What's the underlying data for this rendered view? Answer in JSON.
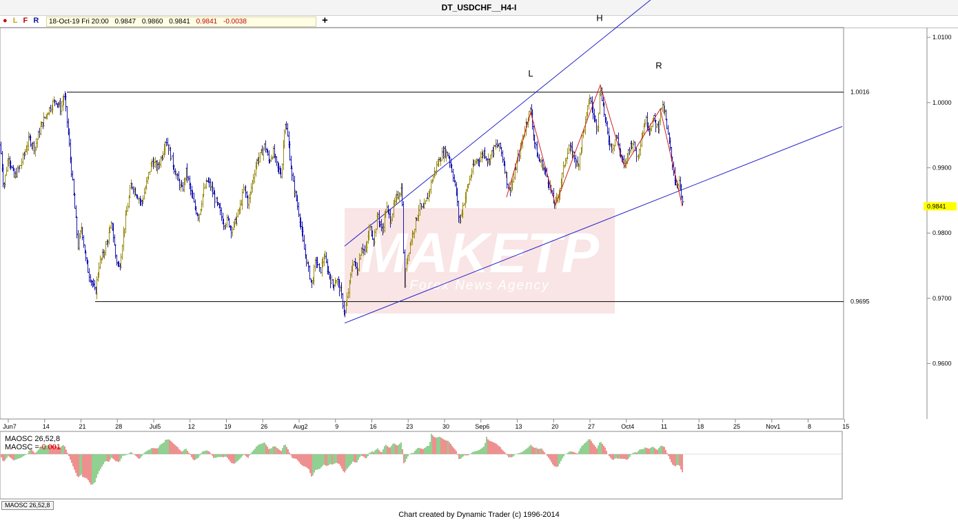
{
  "window": {
    "title": "DT_USDCHF__H4-I"
  },
  "toolbar": {
    "letters": [
      "L",
      "F",
      "R"
    ],
    "ohlc": {
      "date": "18-Oct-19 Fri 20:00",
      "open": "0.9847",
      "high": "0.9860",
      "low": "0.9841",
      "close": "0.9841",
      "change": "-0.0038"
    },
    "add_symbol": "+"
  },
  "chart_data": {
    "type": "candlestick",
    "symbol": "USDCHF",
    "timeframe": "H4",
    "ylim": [
      0.9515,
      1.0115
    ],
    "y_ticks": [
      "1.0100",
      "1.0000",
      "0.9900",
      "0.9800",
      "0.9700",
      "0.9600"
    ],
    "x_ticks": [
      "Jun7",
      "14",
      "21",
      "28",
      "Jul5",
      "12",
      "19",
      "26",
      "Aug2",
      "9",
      "16",
      "23",
      "30",
      "Sep6",
      "13",
      "20",
      "27",
      "Oct4",
      "11",
      "18",
      "25",
      "Nov1",
      "8",
      "15"
    ],
    "last_price": "0.9841",
    "price_path": [
      [
        0,
        0.9935
      ],
      [
        5,
        0.987
      ],
      [
        12,
        0.992
      ],
      [
        20,
        0.9885
      ],
      [
        30,
        0.9905
      ],
      [
        42,
        0.9945
      ],
      [
        50,
        0.993
      ],
      [
        58,
        0.996
      ],
      [
        68,
        0.9985
      ],
      [
        80,
        1.0005
      ],
      [
        88,
        0.999
      ],
      [
        93,
        1.0014
      ],
      [
        98,
        0.996
      ],
      [
        103,
        0.99
      ],
      [
        108,
        0.984
      ],
      [
        113,
        0.978
      ],
      [
        118,
        0.981
      ],
      [
        124,
        0.976
      ],
      [
        128,
        0.974
      ],
      [
        133,
        0.9725
      ],
      [
        138,
        0.9707
      ],
      [
        143,
        0.975
      ],
      [
        150,
        0.977
      ],
      [
        156,
        0.979
      ],
      [
        162,
        0.9815
      ],
      [
        168,
        0.976
      ],
      [
        173,
        0.9745
      ],
      [
        178,
        0.9795
      ],
      [
        183,
        0.983
      ],
      [
        190,
        0.9875
      ],
      [
        198,
        0.986
      ],
      [
        205,
        0.9845
      ],
      [
        212,
        0.9875
      ],
      [
        220,
        0.991
      ],
      [
        228,
        0.99
      ],
      [
        235,
        0.992
      ],
      [
        240,
        0.9945
      ],
      [
        246,
        0.9925
      ],
      [
        252,
        0.99
      ],
      [
        258,
        0.988
      ],
      [
        264,
        0.9865
      ],
      [
        270,
        0.9895
      ],
      [
        276,
        0.9865
      ],
      [
        282,
        0.984
      ],
      [
        288,
        0.9825
      ],
      [
        294,
        0.986
      ],
      [
        300,
        0.988
      ],
      [
        306,
        0.987
      ],
      [
        312,
        0.985
      ],
      [
        318,
        0.9835
      ],
      [
        324,
        0.9815
      ],
      [
        330,
        0.982
      ],
      [
        336,
        0.9805
      ],
      [
        342,
        0.982
      ],
      [
        348,
        0.984
      ],
      [
        354,
        0.987
      ],
      [
        360,
        0.9845
      ],
      [
        366,
        0.988
      ],
      [
        372,
        0.991
      ],
      [
        378,
        0.992
      ],
      [
        384,
        0.9935
      ],
      [
        390,
        0.991
      ],
      [
        396,
        0.9925
      ],
      [
        402,
        0.99
      ],
      [
        408,
        0.989
      ],
      [
        413,
        0.9975
      ],
      [
        418,
        0.994
      ],
      [
        424,
        0.988
      ],
      [
        430,
        0.985
      ],
      [
        435,
        0.982
      ],
      [
        440,
        0.978
      ],
      [
        446,
        0.975
      ],
      [
        452,
        0.972
      ],
      [
        458,
        0.976
      ],
      [
        464,
        0.974
      ],
      [
        470,
        0.9765
      ],
      [
        476,
        0.974
      ],
      [
        482,
        0.972
      ],
      [
        488,
        0.973
      ],
      [
        494,
        0.971
      ],
      [
        500,
        0.9675
      ],
      [
        505,
        0.971
      ],
      [
        512,
        0.976
      ],
      [
        518,
        0.974
      ],
      [
        524,
        0.978
      ],
      [
        530,
        0.977
      ],
      [
        536,
        0.981
      ],
      [
        542,
        0.979
      ],
      [
        548,
        0.983
      ],
      [
        554,
        0.98
      ],
      [
        560,
        0.984
      ],
      [
        566,
        0.982
      ],
      [
        572,
        0.9845
      ],
      [
        578,
        0.986
      ],
      [
        583,
        0.987
      ],
      [
        586,
        0.9715
      ],
      [
        590,
        0.976
      ],
      [
        596,
        0.979
      ],
      [
        602,
        0.9815
      ],
      [
        608,
        0.984
      ],
      [
        614,
        0.9835
      ],
      [
        620,
        0.9855
      ],
      [
        626,
        0.988
      ],
      [
        632,
        0.99
      ],
      [
        638,
        0.9915
      ],
      [
        644,
        0.9925
      ],
      [
        650,
        0.992
      ],
      [
        656,
        0.9895
      ],
      [
        662,
        0.986
      ],
      [
        666,
        0.9815
      ],
      [
        672,
        0.9845
      ],
      [
        678,
        0.987
      ],
      [
        684,
        0.9895
      ],
      [
        690,
        0.991
      ],
      [
        696,
        0.9915
      ],
      [
        702,
        0.9925
      ],
      [
        708,
        0.991
      ],
      [
        714,
        0.9925
      ],
      [
        720,
        0.9935
      ],
      [
        726,
        0.993
      ],
      [
        732,
        0.99
      ],
      [
        738,
        0.9865
      ],
      [
        744,
        0.988
      ],
      [
        750,
        0.991
      ],
      [
        756,
        0.9935
      ],
      [
        762,
        0.9965
      ],
      [
        766,
        0.998
      ],
      [
        770,
        0.999
      ],
      [
        775,
        0.994
      ],
      [
        780,
        0.9915
      ],
      [
        786,
        0.9905
      ],
      [
        792,
        0.989
      ],
      [
        798,
        0.987
      ],
      [
        803,
        0.9845
      ],
      [
        808,
        0.985
      ],
      [
        814,
        0.988
      ],
      [
        820,
        0.9915
      ],
      [
        826,
        0.993
      ],
      [
        832,
        0.992
      ],
      [
        838,
        0.99
      ],
      [
        844,
        0.9945
      ],
      [
        850,
        0.9975
      ],
      [
        855,
        1.001
      ],
      [
        860,
        0.9985
      ],
      [
        866,
        0.996
      ],
      [
        871,
        1.0025
      ],
      [
        876,
        0.9985
      ],
      [
        882,
        0.9945
      ],
      [
        888,
        0.993
      ],
      [
        894,
        0.995
      ],
      [
        900,
        0.992
      ],
      [
        906,
        0.99
      ],
      [
        912,
        0.993
      ],
      [
        918,
        0.994
      ],
      [
        924,
        0.9915
      ],
      [
        930,
        0.9945
      ],
      [
        936,
        0.9975
      ],
      [
        942,
        0.996
      ],
      [
        948,
        0.9975
      ],
      [
        954,
        0.996
      ],
      [
        959,
        0.9995
      ],
      [
        964,
        0.9985
      ],
      [
        968,
        0.9955
      ],
      [
        974,
        0.9915
      ],
      [
        980,
        0.9875
      ],
      [
        985,
        0.988
      ],
      [
        990,
        0.9841
      ]
    ],
    "annotations": {
      "resistance_label": "1.0016",
      "support_label": "0.9695",
      "pattern_labels": [
        "L",
        "H",
        "R"
      ]
    },
    "levels": {
      "resistance": 1.0016,
      "support": 0.9695
    },
    "trendlines": [
      {
        "name": "channel-upper",
        "p1": [
          "Aug 13",
          0.978
        ],
        "p2": [
          "Nov 1",
          1.0285
        ]
      },
      {
        "name": "channel-lower",
        "p1": [
          "Aug 13",
          0.9662
        ],
        "p2": [
          "Nov 1",
          0.991
        ]
      }
    ],
    "indicator": {
      "name": "MAOSC 26,52,8",
      "value_label": "MAOSC =",
      "value": "-0.001"
    },
    "colors": {
      "up_bar": "#9a8a10",
      "down_bar": "#1515b0",
      "channel": "#2222cc",
      "level": "#000000",
      "pattern": "#cc2222",
      "last_price_tag": "#ffff00",
      "osc_up": "#22a022",
      "osc_down": "#dd2222"
    }
  },
  "watermark": {
    "brand": "MAKETP",
    "tagline": "Forex News Agency"
  },
  "footer": {
    "credit": "Chart created by Dynamic Trader  (c) 1996-2014"
  },
  "indicator_tab": {
    "label": "MAOSC 26,52,8"
  }
}
